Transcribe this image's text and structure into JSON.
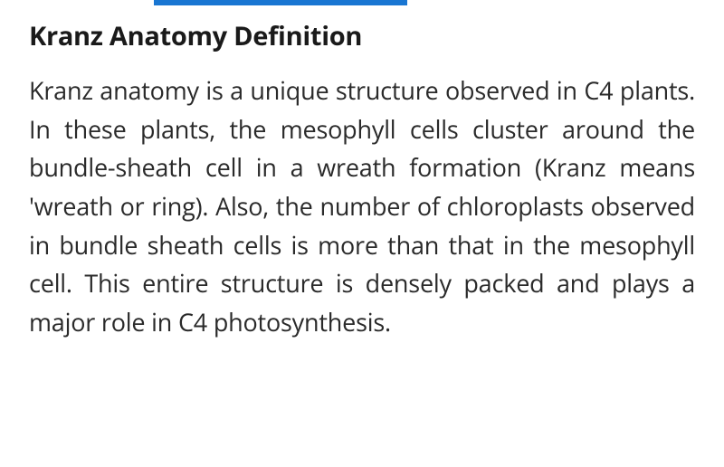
{
  "document": {
    "heading": "Kranz Anatomy Definition",
    "body": "Kranz anatomy is a unique structure observed in C4 plants. In these plants, the mesophyll cells cluster around the bundle-sheath cell in a wreath formation (Kranz means 'wreath or ring). Also, the number of chloroplasts observed in bundle sheath cells is more than that in the mesophyll cell. This entire structure is densely packed and plays a major role in C4 photosynthesis."
  },
  "style": {
    "accent_bar_color": "#1976d2",
    "background_color": "#ffffff",
    "heading_color": "#1a1a1a",
    "body_color": "#2a2a2a",
    "heading_fontsize": 29,
    "body_fontsize": 27,
    "heading_weight": 700,
    "body_weight": 400,
    "line_height": 1.58,
    "text_align": "justify"
  }
}
